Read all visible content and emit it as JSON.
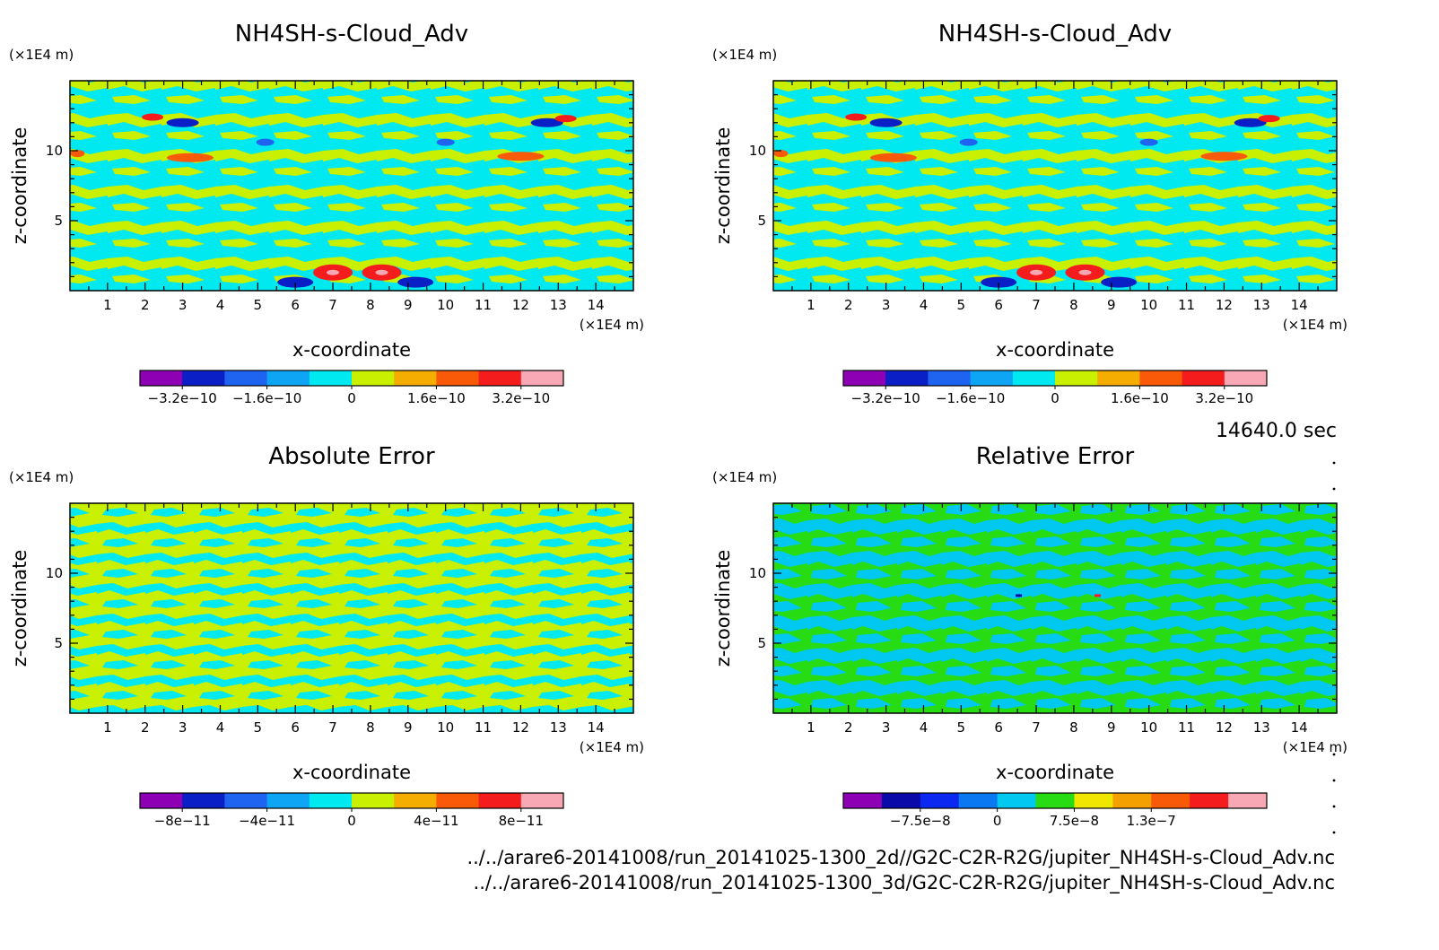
{
  "time_label": "14640.0 sec",
  "files": [
    "../../arare6-20141008/run_20141025-1300_2d//G2C-C2R-R2G/jupiter_NH4SH-s-Cloud_Adv.nc",
    "../../arare6-20141008/run_20141025-1300_3d/G2C-C2R-R2G/jupiter_NH4SH-s-Cloud_Adv.nc"
  ],
  "chart_data": [
    {
      "type": "heatmap",
      "title": "NH4SH-s-Cloud_Adv",
      "xlabel": "x-coordinate",
      "ylabel": "z-coordinate",
      "x_unit": "(×1E4 m)",
      "y_unit": "(×1E4 m)",
      "xlim": [
        0,
        15
      ],
      "ylim": [
        0,
        15
      ],
      "x_ticks": [
        "1",
        "2",
        "3",
        "4",
        "5",
        "6",
        "7",
        "8",
        "9",
        "10",
        "11",
        "12",
        "13",
        "14"
      ],
      "y_ticks": [
        "5",
        "10"
      ],
      "colorbar": {
        "levels": 9,
        "colors": [
          "#8d00b4",
          "#0a1fc6",
          "#1f64f0",
          "#0ea5f4",
          "#00e8f0",
          "#c8f000",
          "#f4ad00",
          "#f85a08",
          "#f41c1c",
          "#f7a8b4"
        ],
        "tick_labels": [
          "−3.2e−10",
          "−1.6e−10",
          "0",
          "1.6e−10",
          "3.2e−10"
        ],
        "tick_edges": [
          1,
          3,
          5,
          7,
          9
        ]
      }
    },
    {
      "type": "heatmap",
      "title": "NH4SH-s-Cloud_Adv",
      "xlabel": "x-coordinate",
      "ylabel": "z-coordinate",
      "x_unit": "(×1E4 m)",
      "y_unit": "(×1E4 m)",
      "xlim": [
        0,
        15
      ],
      "ylim": [
        0,
        15
      ],
      "x_ticks": [
        "1",
        "2",
        "3",
        "4",
        "5",
        "6",
        "7",
        "8",
        "9",
        "10",
        "11",
        "12",
        "13",
        "14"
      ],
      "y_ticks": [
        "5",
        "10"
      ],
      "colorbar": {
        "levels": 9,
        "colors": [
          "#8d00b4",
          "#0a1fc6",
          "#1f64f0",
          "#0ea5f4",
          "#00e8f0",
          "#c8f000",
          "#f4ad00",
          "#f85a08",
          "#f41c1c",
          "#f7a8b4"
        ],
        "tick_labels": [
          "−3.2e−10",
          "−1.6e−10",
          "0",
          "1.6e−10",
          "3.2e−10"
        ],
        "tick_edges": [
          1,
          3,
          5,
          7,
          9
        ]
      }
    },
    {
      "type": "heatmap",
      "title": "Absolute Error",
      "xlabel": "x-coordinate",
      "ylabel": "z-coordinate",
      "x_unit": "(×1E4 m)",
      "y_unit": "(×1E4 m)",
      "xlim": [
        0,
        15
      ],
      "ylim": [
        0,
        15
      ],
      "x_ticks": [
        "1",
        "2",
        "3",
        "4",
        "5",
        "6",
        "7",
        "8",
        "9",
        "10",
        "11",
        "12",
        "13",
        "14"
      ],
      "y_ticks": [
        "5",
        "10"
      ],
      "colorbar": {
        "levels": 9,
        "colors": [
          "#8d00b4",
          "#0a1fc6",
          "#1f64f0",
          "#0ea5f4",
          "#00e8f0",
          "#c8f000",
          "#f4ad00",
          "#f85a08",
          "#f41c1c",
          "#f7a8b4"
        ],
        "tick_labels": [
          "−8e−11",
          "−4e−11",
          "0",
          "4e−11",
          "8e−11"
        ],
        "tick_edges": [
          1,
          3,
          5,
          7,
          9
        ]
      }
    },
    {
      "type": "heatmap",
      "title": "Relative Error",
      "xlabel": "x-coordinate",
      "ylabel": "z-coordinate",
      "x_unit": "(×1E4 m)",
      "y_unit": "(×1E4 m)",
      "xlim": [
        0,
        15
      ],
      "ylim": [
        0,
        15
      ],
      "x_ticks": [
        "1",
        "2",
        "3",
        "4",
        "5",
        "6",
        "7",
        "8",
        "9",
        "10",
        "11",
        "12",
        "13",
        "14"
      ],
      "y_ticks": [
        "5",
        "10"
      ],
      "colorbar": {
        "levels": 10,
        "colors": [
          "#8d00b4",
          "#0a0aa8",
          "#0a28f0",
          "#0a78f0",
          "#00c8f0",
          "#28dc14",
          "#f0e600",
          "#f4a000",
          "#f85a08",
          "#f41c1c",
          "#f7a8b4"
        ],
        "tick_labels": [
          "−7.5e−8",
          "0",
          "7.5e−8",
          "1.3e−7"
        ],
        "tick_edges": [
          2,
          4,
          6,
          8
        ]
      }
    }
  ]
}
